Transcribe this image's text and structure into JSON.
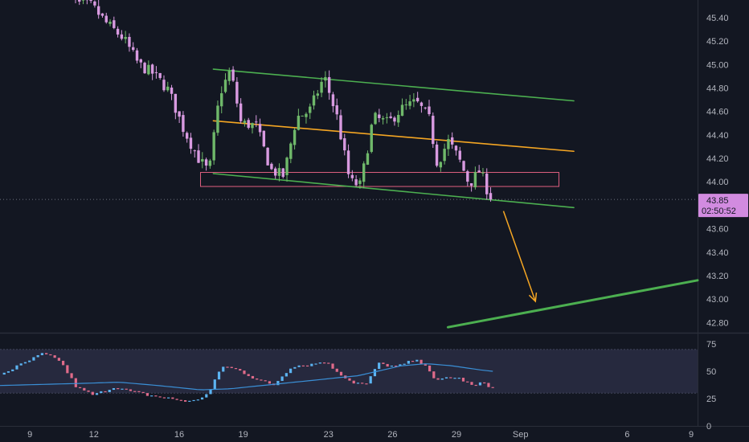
{
  "colors": {
    "background": "#131722",
    "grid_separator": "#2a2e39",
    "axis_text": "#b2b5be",
    "candle_up": "#6fb86a",
    "candle_down": "#d89ae0",
    "channel_line": "#4caf50",
    "mid_line": "#f5a623",
    "zone_border": "#e06080",
    "price_badge": "#d28be0",
    "rsi_up": "#5cb4f2",
    "rsi_down": "#e06b8a",
    "rsi_ma": "#3a8fd6",
    "rsi_band": "#2a2d43"
  },
  "price_badge": {
    "price": "43.85",
    "countdown": "02:50:52"
  },
  "chart_data": [
    {
      "type": "candlestick",
      "title": "",
      "y_axis_side": "right",
      "ylim": [
        42.72,
        45.55
      ],
      "xlim": [
        7.6,
        40.3
      ],
      "x_unit": "day (Aug 9 … Sep 9; Sep 1 = day 32)",
      "y_ticks": [
        "45.40",
        "45.20",
        "45.00",
        "44.80",
        "44.60",
        "44.40",
        "44.20",
        "44.00",
        "43.60",
        "43.40",
        "43.20",
        "43.00",
        "42.80"
      ],
      "x_ticks": [
        {
          "label": "9",
          "day": 9
        },
        {
          "label": "12",
          "day": 12
        },
        {
          "label": "16",
          "day": 16
        },
        {
          "label": "19",
          "day": 19
        },
        {
          "label": "23",
          "day": 23
        },
        {
          "label": "26",
          "day": 26
        },
        {
          "label": "29",
          "day": 29
        },
        {
          "label": "Sep",
          "day": 32
        },
        {
          "label": "6",
          "day": 37
        },
        {
          "label": "9",
          "day": 40
        }
      ],
      "current_price": 43.85,
      "grid": false,
      "candle_anchors": [
        {
          "day": 10.6,
          "price": 45.65
        },
        {
          "day": 11.2,
          "price": 45.52
        },
        {
          "day": 11.9,
          "price": 45.5
        },
        {
          "day": 12.6,
          "price": 45.35
        },
        {
          "day": 13.4,
          "price": 45.22
        },
        {
          "day": 14.1,
          "price": 45.0
        },
        {
          "day": 14.8,
          "price": 44.92
        },
        {
          "day": 15.5,
          "price": 44.78
        },
        {
          "day": 16.2,
          "price": 44.45
        },
        {
          "day": 16.9,
          "price": 44.2
        },
        {
          "day": 17.4,
          "price": 44.08
        },
        {
          "day": 17.9,
          "price": 44.75
        },
        {
          "day": 18.4,
          "price": 44.95
        },
        {
          "day": 18.9,
          "price": 44.5
        },
        {
          "day": 19.6,
          "price": 44.48
        },
        {
          "day": 20.3,
          "price": 44.1
        },
        {
          "day": 20.9,
          "price": 44.05
        },
        {
          "day": 21.5,
          "price": 44.55
        },
        {
          "day": 22.1,
          "price": 44.6
        },
        {
          "day": 22.8,
          "price": 44.9
        },
        {
          "day": 23.4,
          "price": 44.55
        },
        {
          "day": 24.0,
          "price": 44.0
        },
        {
          "day": 24.5,
          "price": 43.97
        },
        {
          "day": 25.1,
          "price": 44.55
        },
        {
          "day": 25.8,
          "price": 44.5
        },
        {
          "day": 26.4,
          "price": 44.62
        },
        {
          "day": 27.1,
          "price": 44.68
        },
        {
          "day": 27.7,
          "price": 44.55
        },
        {
          "day": 28.1,
          "price": 44.15
        },
        {
          "day": 28.6,
          "price": 44.35
        },
        {
          "day": 29.1,
          "price": 44.2
        },
        {
          "day": 29.6,
          "price": 43.98
        },
        {
          "day": 30.1,
          "price": 44.1
        },
        {
          "day": 30.6,
          "price": 43.85
        }
      ],
      "drawings": {
        "upper_channel": {
          "from": {
            "day": 17.6,
            "price": 44.96
          },
          "to": {
            "day": 34.5,
            "price": 44.69
          }
        },
        "lower_channel": {
          "from": {
            "day": 17.6,
            "price": 44.07
          },
          "to": {
            "day": 34.5,
            "price": 43.78
          }
        },
        "mid_line": {
          "from": {
            "day": 17.6,
            "price": 44.52
          },
          "to": {
            "day": 34.5,
            "price": 44.26
          }
        },
        "support_zone": {
          "day_from": 17.0,
          "day_to": 33.8,
          "price_low": 43.96,
          "price_high": 44.08
        },
        "target_line": {
          "from": {
            "day": 28.6,
            "price": 42.76
          },
          "to": {
            "day": 40.3,
            "price": 43.16
          }
        },
        "projection_arrow": {
          "from": {
            "day": 31.2,
            "price": 43.75
          },
          "to": {
            "day": 32.7,
            "price": 42.98
          }
        }
      }
    },
    {
      "type": "line",
      "indicator": "oscillator",
      "ylim": [
        0,
        75
      ],
      "y_ticks": [
        "75",
        "50",
        "25",
        "0"
      ],
      "band": [
        30,
        70
      ],
      "oscillator_anchors": [
        {
          "day": 7.6,
          "value": 47
        },
        {
          "day": 8.8,
          "value": 58
        },
        {
          "day": 9.6,
          "value": 66
        },
        {
          "day": 10.4,
          "value": 60
        },
        {
          "day": 11.2,
          "value": 35
        },
        {
          "day": 12.0,
          "value": 28
        },
        {
          "day": 13.0,
          "value": 36
        },
        {
          "day": 13.6,
          "value": 32
        },
        {
          "day": 14.6,
          "value": 28
        },
        {
          "day": 15.6,
          "value": 25
        },
        {
          "day": 16.6,
          "value": 22
        },
        {
          "day": 17.4,
          "value": 30
        },
        {
          "day": 18.0,
          "value": 55
        },
        {
          "day": 18.8,
          "value": 51
        },
        {
          "day": 19.5,
          "value": 44
        },
        {
          "day": 20.4,
          "value": 37
        },
        {
          "day": 21.3,
          "value": 55
        },
        {
          "day": 22.1,
          "value": 56
        },
        {
          "day": 22.8,
          "value": 59
        },
        {
          "day": 23.4,
          "value": 50
        },
        {
          "day": 24.1,
          "value": 40
        },
        {
          "day": 24.8,
          "value": 38
        },
        {
          "day": 25.3,
          "value": 57
        },
        {
          "day": 26.2,
          "value": 54
        },
        {
          "day": 27.0,
          "value": 60
        },
        {
          "day": 27.6,
          "value": 56
        },
        {
          "day": 28.0,
          "value": 40
        },
        {
          "day": 28.6,
          "value": 45
        },
        {
          "day": 29.2,
          "value": 43
        },
        {
          "day": 29.8,
          "value": 36
        },
        {
          "day": 30.3,
          "value": 40
        },
        {
          "day": 30.7,
          "value": 34
        }
      ],
      "ma_anchors": [
        {
          "day": 7.6,
          "value": 37
        },
        {
          "day": 9.6,
          "value": 38
        },
        {
          "day": 11.6,
          "value": 39
        },
        {
          "day": 13.2,
          "value": 40
        },
        {
          "day": 15.0,
          "value": 37
        },
        {
          "day": 17.0,
          "value": 33
        },
        {
          "day": 18.4,
          "value": 34
        },
        {
          "day": 20.4,
          "value": 38
        },
        {
          "day": 22.4,
          "value": 42
        },
        {
          "day": 24.4,
          "value": 46
        },
        {
          "day": 26.4,
          "value": 55
        },
        {
          "day": 27.6,
          "value": 57
        },
        {
          "day": 28.8,
          "value": 55
        },
        {
          "day": 30.2,
          "value": 51
        },
        {
          "day": 30.7,
          "value": 50
        }
      ]
    }
  ]
}
